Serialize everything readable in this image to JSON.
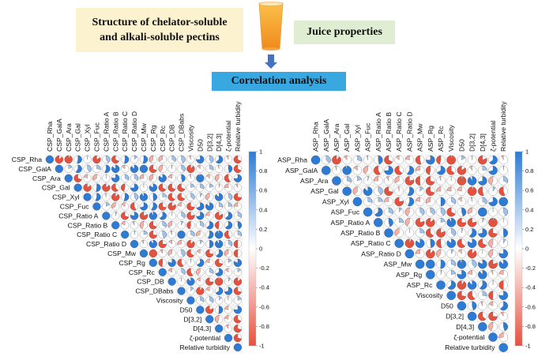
{
  "header": {
    "structure_line1": "Structure of chelator-soluble",
    "structure_line2": "and alkali-soluble pectins",
    "juice_properties": "Juice properties",
    "correlation_analysis": "Correlation analysis"
  },
  "colors": {
    "positive": "#2c7bd6",
    "negative": "#e8503e",
    "structure_box": "#fdf2cf",
    "juice_box": "#dfeed3",
    "correlation_box": "#39a8e0",
    "arrow": "#4472c4"
  },
  "icons": [
    "juice-glass-icon",
    "arrow-down-icon"
  ],
  "colorbar_ticks": [
    "1",
    "0.8",
    "0.6",
    "0.4",
    "0.2",
    "0",
    "-0.2",
    "-0.4",
    "-0.6",
    "-0.8",
    "-1"
  ],
  "csp_labels": [
    "CSP_Rha",
    "CSP_GalA",
    "CSP_Ara",
    "CSP_Gal",
    "CSP_Xyl",
    "CSP_Fuc",
    "CSP_Ratio A",
    "CSP_Ratio B",
    "CSP_Ratio C",
    "CSP_Ratio D",
    "CSP_Mw",
    "CSP_Rg",
    "CSP_Rc",
    "CSP_DB",
    "CSP_DBabs",
    "Viscosity",
    "D50",
    "D[3,2]",
    "D[4,3]",
    "ζ-potential",
    "Relative turbidity"
  ],
  "asp_labels": [
    "ASP_Rha",
    "ASP_GalA",
    "ASP_Ara",
    "ASP_Gal",
    "ASP_Xyl",
    "ASP_Fuc",
    "ASP_Ratio A",
    "ASP_Ratio B",
    "ASP_Ratio C",
    "ASP_Ratio D",
    "ASP_Mw",
    "ASP_Rg",
    "ASP_Rc",
    "Viscosity",
    "D50",
    "D[3,2]",
    "D[4,3]",
    "ζ-potential",
    "Relative turbidity"
  ]
}
